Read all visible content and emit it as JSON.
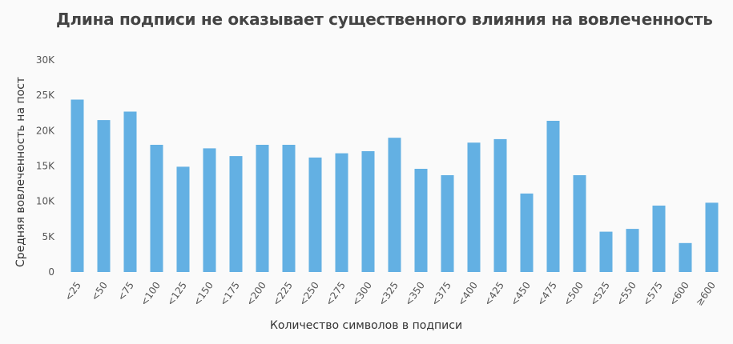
{
  "chart_data": {
    "type": "bar",
    "title": "Длина подписи не оказывает существенного влияния на вовлеченность",
    "xlabel": "Количество символов в подписи",
    "ylabel": "Средняя вовлеченность на пост",
    "categories": [
      "<25",
      "<50",
      "<75",
      "<100",
      "<125",
      "<150",
      "<175",
      "<200",
      "<225",
      "<250",
      "<275",
      "<300",
      "<325",
      "<350",
      "<375",
      "<400",
      "<425",
      "<450",
      "<475",
      "<500",
      "<525",
      "<550",
      "<575",
      "<600",
      "≥600"
    ],
    "values": [
      24400,
      21500,
      22700,
      18000,
      14900,
      17500,
      16400,
      18000,
      18000,
      16200,
      16800,
      17100,
      19000,
      14600,
      13700,
      18300,
      18800,
      11100,
      21400,
      13700,
      5700,
      6100,
      9400,
      4100,
      9800
    ],
    "yticks": [
      "0",
      "5K",
      "10K",
      "15K",
      "20K",
      "25K",
      "30K"
    ],
    "ylim": [
      0,
      30000
    ],
    "bar_color": "#63b0e3",
    "grid": false
  }
}
